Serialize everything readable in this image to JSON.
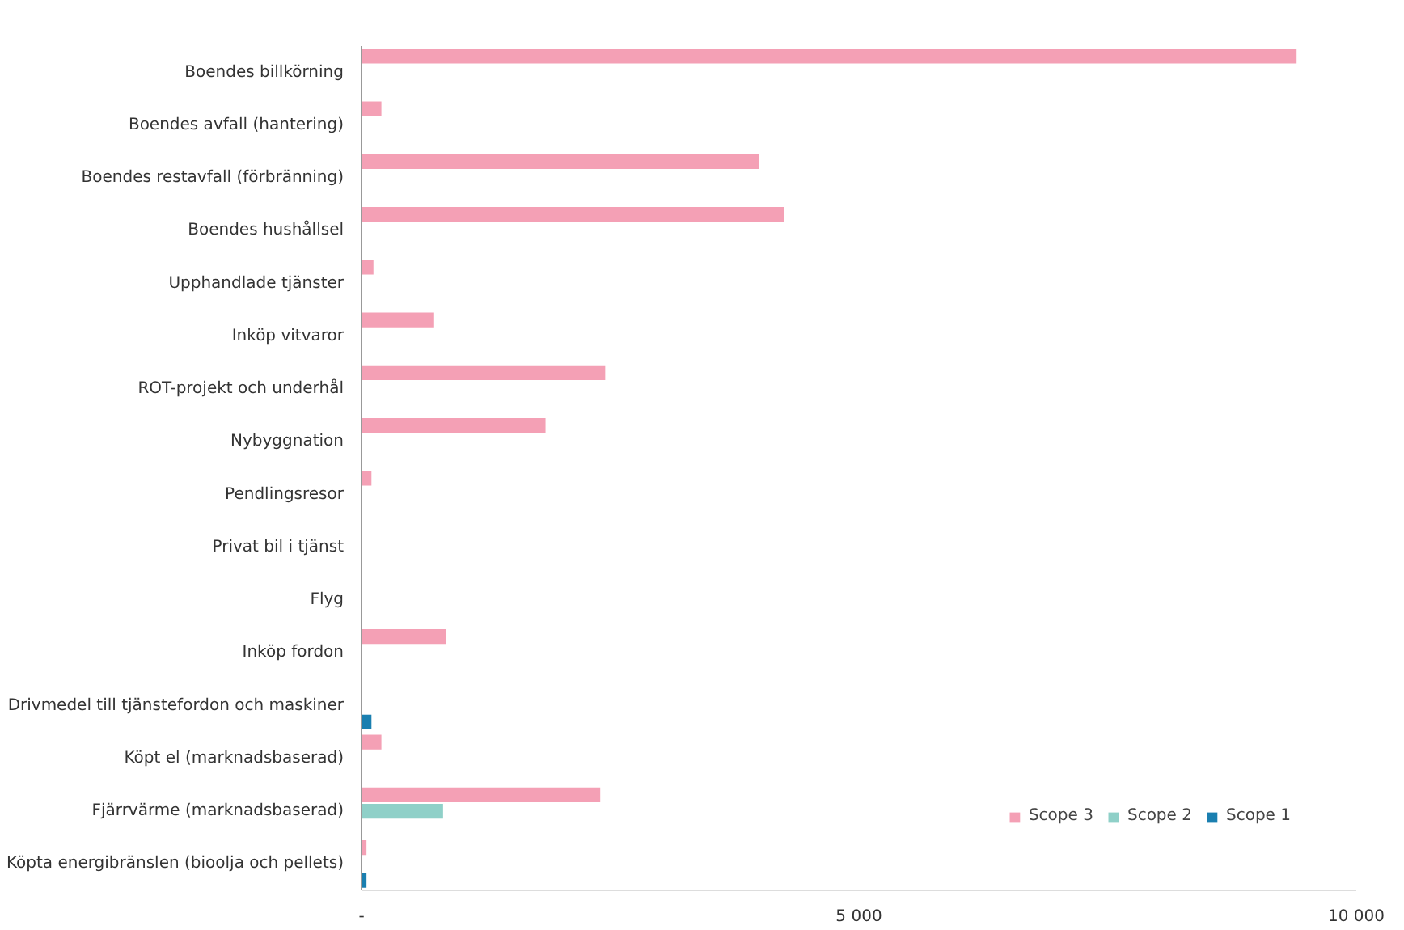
{
  "chart_data": {
    "type": "bar",
    "orientation": "horizontal",
    "categories": [
      "Boendes billkörning",
      "Boendes avfall (hantering)",
      "Boendes restavfall (förbränning)",
      "Boendes hushållsel",
      "Upphandlade tjänster",
      "Inköp vitvaror",
      "ROT-projekt och underhål",
      "Nybyggnation",
      "Pendlingsresor",
      "Privat bil i tjänst",
      "Flyg",
      "Inköp fordon",
      "Drivmedel till tjänstefordon och maskiner",
      "Köpt el (marknadsbaserad)",
      "Fjärrvärme (marknadsbaserad)",
      "Köpta energibränslen (bioolja och pellets)"
    ],
    "series": [
      {
        "name": "Scope 3",
        "color": "#f4a0b5",
        "values": [
          9400,
          200,
          4000,
          4250,
          120,
          730,
          2450,
          1850,
          100,
          0,
          0,
          850,
          null,
          200,
          2400,
          50
        ]
      },
      {
        "name": "Scope 2",
        "color": "#8fd0c8",
        "values": [
          0,
          0,
          0,
          0,
          0,
          0,
          0,
          0,
          0,
          0,
          0,
          0,
          0,
          0,
          820,
          0
        ]
      },
      {
        "name": "Scope 1",
        "color": "#1a7fb0",
        "values": [
          0,
          0,
          0,
          0,
          0,
          0,
          0,
          0,
          0,
          0,
          0,
          0,
          100,
          0,
          0,
          50
        ]
      }
    ],
    "xlim": [
      0,
      10000
    ],
    "xticks": [
      {
        "value": 0,
        "label": "-"
      },
      {
        "value": 5000,
        "label": "5 000"
      },
      {
        "value": 10000,
        "label": "10 000"
      }
    ],
    "grid": false,
    "legend": "bottom right"
  }
}
